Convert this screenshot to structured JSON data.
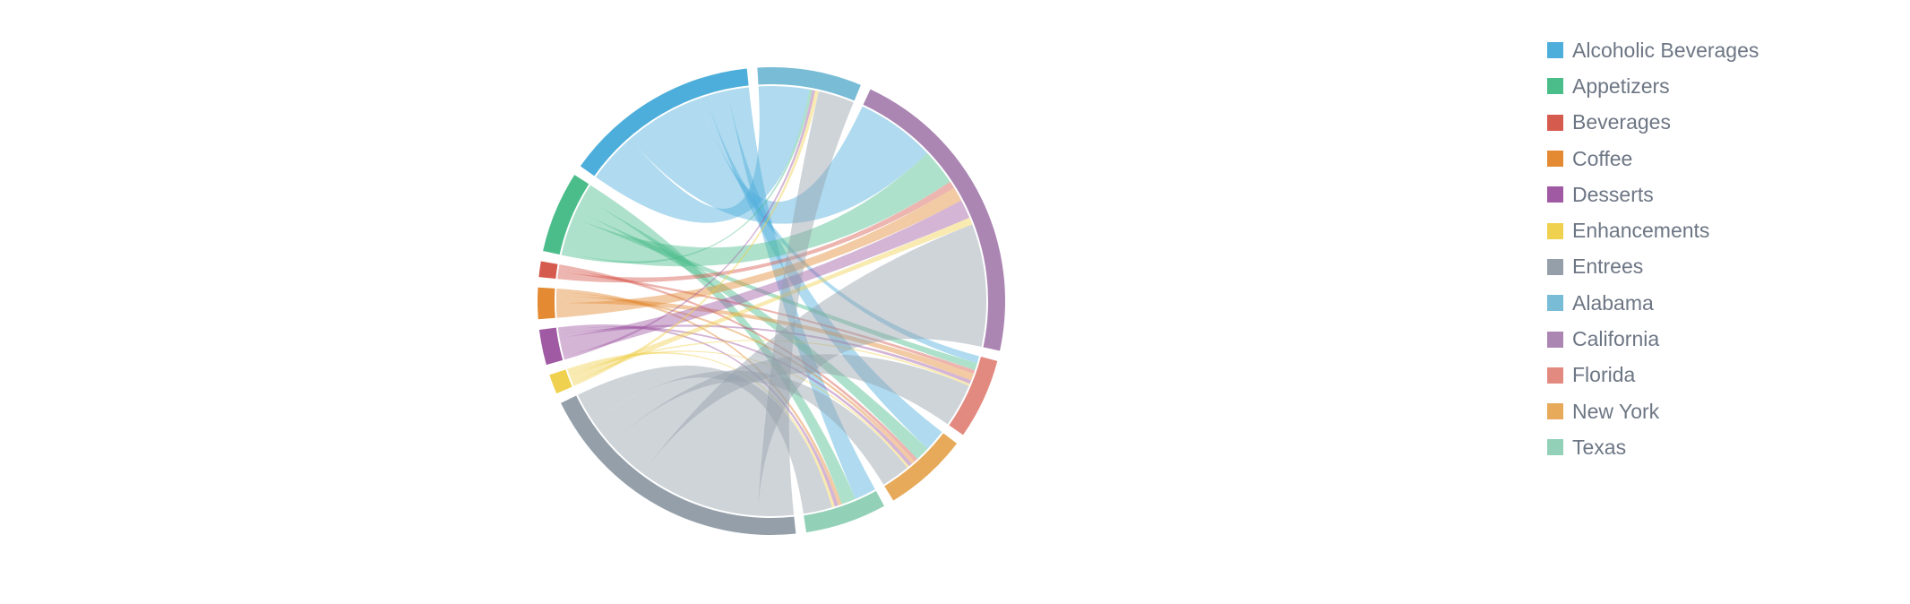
{
  "chart_data": {
    "type": "chord",
    "title": "",
    "nodes": [
      {
        "name": "Alcoholic Beverages",
        "color": "#4daedb",
        "group": "category"
      },
      {
        "name": "Appetizers",
        "color": "#4bbd8b",
        "group": "category"
      },
      {
        "name": "Beverages",
        "color": "#d65b4f",
        "group": "category"
      },
      {
        "name": "Coffee",
        "color": "#e38a33",
        "group": "category"
      },
      {
        "name": "Desserts",
        "color": "#a05aa3",
        "group": "category"
      },
      {
        "name": "Enhancements",
        "color": "#efd14f",
        "group": "category"
      },
      {
        "name": "Entrees",
        "color": "#959faa",
        "group": "category"
      },
      {
        "name": "Alabama",
        "color": "#79bcd6",
        "group": "state"
      },
      {
        "name": "California",
        "color": "#ab86b3",
        "group": "state"
      },
      {
        "name": "Florida",
        "color": "#e28a7f",
        "group": "state"
      },
      {
        "name": "New York",
        "color": "#e7aa5a",
        "group": "state"
      },
      {
        "name": "Texas",
        "color": "#92d1b7",
        "group": "state"
      }
    ],
    "links": [
      {
        "source": "Alcoholic Beverages",
        "target": "Alabama",
        "value": 7
      },
      {
        "source": "Alcoholic Beverages",
        "target": "California",
        "value": 11
      },
      {
        "source": "Alcoholic Beverages",
        "target": "Florida",
        "value": 1
      },
      {
        "source": "Alcoholic Beverages",
        "target": "New York",
        "value": 3
      },
      {
        "source": "Alcoholic Beverages",
        "target": "Texas",
        "value": 3
      },
      {
        "source": "Appetizers",
        "target": "Alabama",
        "value": 0.4
      },
      {
        "source": "Appetizers",
        "target": "California",
        "value": 5
      },
      {
        "source": "Appetizers",
        "target": "Florida",
        "value": 1
      },
      {
        "source": "Appetizers",
        "target": "New York",
        "value": 2
      },
      {
        "source": "Appetizers",
        "target": "Texas",
        "value": 2
      },
      {
        "source": "Beverages",
        "target": "California",
        "value": 1
      },
      {
        "source": "Beverages",
        "target": "Florida",
        "value": 0.5
      },
      {
        "source": "Beverages",
        "target": "New York",
        "value": 0.5
      },
      {
        "source": "Coffee",
        "target": "California",
        "value": 2
      },
      {
        "source": "Coffee",
        "target": "Florida",
        "value": 1
      },
      {
        "source": "Coffee",
        "target": "New York",
        "value": 0.5
      },
      {
        "source": "Coffee",
        "target": "Texas",
        "value": 0.5
      },
      {
        "source": "Desserts",
        "target": "Alabama",
        "value": 0.4
      },
      {
        "source": "Desserts",
        "target": "California",
        "value": 2.6
      },
      {
        "source": "Desserts",
        "target": "Florida",
        "value": 0.5
      },
      {
        "source": "Desserts",
        "target": "New York",
        "value": 0.5
      },
      {
        "source": "Desserts",
        "target": "Texas",
        "value": 0.5
      },
      {
        "source": "Enhancements",
        "target": "Alabama",
        "value": 0.5
      },
      {
        "source": "Enhancements",
        "target": "California",
        "value": 1
      },
      {
        "source": "Enhancements",
        "target": "Florida",
        "value": 0.3
      },
      {
        "source": "Enhancements",
        "target": "New York",
        "value": 0.3
      },
      {
        "source": "Enhancements",
        "target": "Texas",
        "value": 0.4
      },
      {
        "source": "Entrees",
        "target": "Alabama",
        "value": 5
      },
      {
        "source": "Entrees",
        "target": "California",
        "value": 17
      },
      {
        "source": "Entrees",
        "target": "Florida",
        "value": 6
      },
      {
        "source": "Entrees",
        "target": "New York",
        "value": 4
      },
      {
        "source": "Entrees",
        "target": "Texas",
        "value": 4
      }
    ],
    "legend": {
      "position": "right"
    }
  }
}
